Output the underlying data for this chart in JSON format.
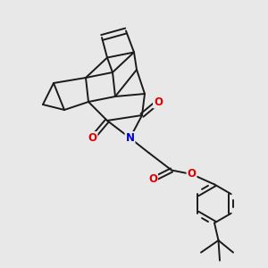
{
  "bg_color": "#e8e8e8",
  "bond_color": "#1a1a1a",
  "bond_width": 1.4,
  "N_color": "#0000cc",
  "O_color": "#dd0000",
  "font_size_atom": 8.5,
  "fig_width": 3.0,
  "fig_height": 3.0,
  "dpi": 100,
  "xlim": [
    0,
    10
  ],
  "ylim": [
    0,
    10
  ]
}
